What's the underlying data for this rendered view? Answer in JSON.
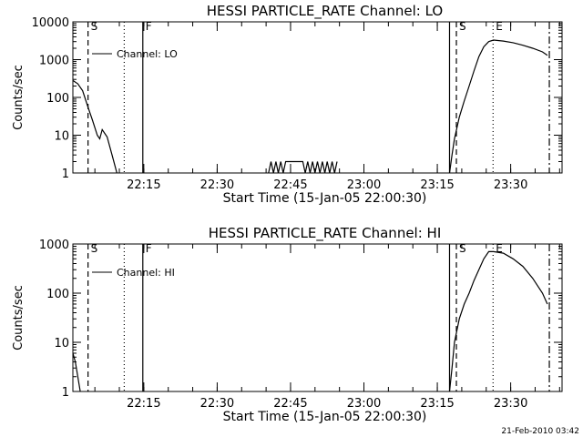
{
  "footer_timestamp": "21-Feb-2010 03:42",
  "chart_data": [
    {
      "type": "line",
      "title": "HESSI PARTICLE_RATE Channel: LO",
      "xlabel": "Start Time (15-Jan-05 22:00:30)",
      "ylabel": "Counts/sec",
      "yscale": "log",
      "ylim": [
        1,
        10000
      ],
      "xlim_minutes": [
        0,
        100
      ],
      "yticks": [
        {
          "v": 1,
          "label": "1"
        },
        {
          "v": 10,
          "label": "10"
        },
        {
          "v": 100,
          "label": "100"
        },
        {
          "v": 1000,
          "label": "1000"
        },
        {
          "v": 10000,
          "label": "10000"
        }
      ],
      "xticks": [
        {
          "v": 14.5,
          "label": "22:15"
        },
        {
          "v": 29.5,
          "label": "22:30"
        },
        {
          "v": 44.5,
          "label": "22:45"
        },
        {
          "v": 59.5,
          "label": "23:00"
        },
        {
          "v": 74.5,
          "label": "23:15"
        },
        {
          "v": 89.5,
          "label": "23:30"
        }
      ],
      "legend": "Channel: LO",
      "markers": [
        {
          "x": 3.1,
          "style": "dashed",
          "label": "S"
        },
        {
          "x": 10.5,
          "style": "dotted",
          "label": ""
        },
        {
          "x": 14.3,
          "style": "solid",
          "label": "F"
        },
        {
          "x": 77.0,
          "style": "solid",
          "label": ""
        },
        {
          "x": 78.4,
          "style": "dashed",
          "label": "S"
        },
        {
          "x": 85.9,
          "style": "dotted",
          "label": "E"
        },
        {
          "x": 97.4,
          "style": "dashdot",
          "label": ""
        }
      ],
      "series": [
        {
          "segments": [
            [
              [
                0,
                280
              ],
              [
                1,
                230
              ],
              [
                2,
                150
              ],
              [
                3,
                60
              ],
              [
                4,
                25
              ],
              [
                5,
                10
              ],
              [
                5.5,
                8
              ],
              [
                6,
                14
              ],
              [
                7,
                9
              ],
              [
                8,
                3
              ],
              [
                9,
                1
              ]
            ],
            [
              [
                40,
                1
              ],
              [
                40.5,
                2
              ],
              [
                41,
                1
              ],
              [
                41.5,
                2
              ],
              [
                42,
                1
              ],
              [
                42.5,
                2
              ],
              [
                43,
                1
              ],
              [
                43.5,
                2
              ],
              [
                44,
                2
              ],
              [
                45,
                2
              ],
              [
                46,
                2
              ],
              [
                47,
                2
              ],
              [
                47.5,
                1
              ],
              [
                48,
                2
              ],
              [
                48.5,
                1
              ],
              [
                49,
                2
              ],
              [
                49.5,
                1
              ],
              [
                50,
                2
              ],
              [
                50.5,
                1
              ],
              [
                51,
                2
              ],
              [
                51.5,
                1
              ],
              [
                52,
                2
              ],
              [
                52.5,
                1
              ],
              [
                53,
                2
              ],
              [
                53.5,
                1
              ],
              [
                54,
                2
              ]
            ],
            [
              [
                77,
                1
              ],
              [
                77.5,
                3
              ],
              [
                78,
                8
              ],
              [
                79,
                30
              ],
              [
                80,
                80
              ],
              [
                81,
                200
              ],
              [
                82,
                500
              ],
              [
                83,
                1200
              ],
              [
                84,
                2200
              ],
              [
                85,
                3000
              ],
              [
                86,
                3300
              ],
              [
                88,
                3100
              ],
              [
                90,
                2800
              ],
              [
                92,
                2400
              ],
              [
                94,
                2000
              ],
              [
                96,
                1600
              ],
              [
                97,
                1300
              ]
            ]
          ]
        }
      ]
    },
    {
      "type": "line",
      "title": "HESSI PARTICLE_RATE Channel: HI",
      "xlabel": "Start Time (15-Jan-05 22:00:30)",
      "ylabel": "Counts/sec",
      "yscale": "log",
      "ylim": [
        1,
        1000
      ],
      "xlim_minutes": [
        0,
        100
      ],
      "yticks": [
        {
          "v": 1,
          "label": "1"
        },
        {
          "v": 10,
          "label": "10"
        },
        {
          "v": 100,
          "label": "100"
        },
        {
          "v": 1000,
          "label": "1000"
        }
      ],
      "xticks": [
        {
          "v": 14.5,
          "label": "22:15"
        },
        {
          "v": 29.5,
          "label": "22:30"
        },
        {
          "v": 44.5,
          "label": "22:45"
        },
        {
          "v": 59.5,
          "label": "23:00"
        },
        {
          "v": 74.5,
          "label": "23:15"
        },
        {
          "v": 89.5,
          "label": "23:30"
        }
      ],
      "legend": "Channel: HI",
      "markers": [
        {
          "x": 3.1,
          "style": "dashed",
          "label": "S"
        },
        {
          "x": 10.5,
          "style": "dotted",
          "label": ""
        },
        {
          "x": 14.3,
          "style": "solid",
          "label": "F"
        },
        {
          "x": 77.0,
          "style": "solid",
          "label": ""
        },
        {
          "x": 78.4,
          "style": "dashed",
          "label": "S"
        },
        {
          "x": 85.9,
          "style": "dotted",
          "label": "E"
        },
        {
          "x": 97.4,
          "style": "dashdot",
          "label": ""
        }
      ],
      "series": [
        {
          "segments": [
            [
              [
                0,
                6
              ],
              [
                0.5,
                4
              ],
              [
                1,
                2
              ],
              [
                1.5,
                1
              ]
            ],
            [
              [
                77,
                1
              ],
              [
                77.5,
                3
              ],
              [
                78,
                10
              ],
              [
                79,
                30
              ],
              [
                80,
                60
              ],
              [
                81,
                100
              ],
              [
                82,
                180
              ],
              [
                83,
                300
              ],
              [
                84,
                500
              ],
              [
                85,
                700
              ],
              [
                86,
                700
              ],
              [
                88,
                650
              ],
              [
                90,
                500
              ],
              [
                92,
                350
              ],
              [
                94,
                200
              ],
              [
                96,
                100
              ],
              [
                97,
                60
              ]
            ]
          ]
        }
      ]
    }
  ]
}
